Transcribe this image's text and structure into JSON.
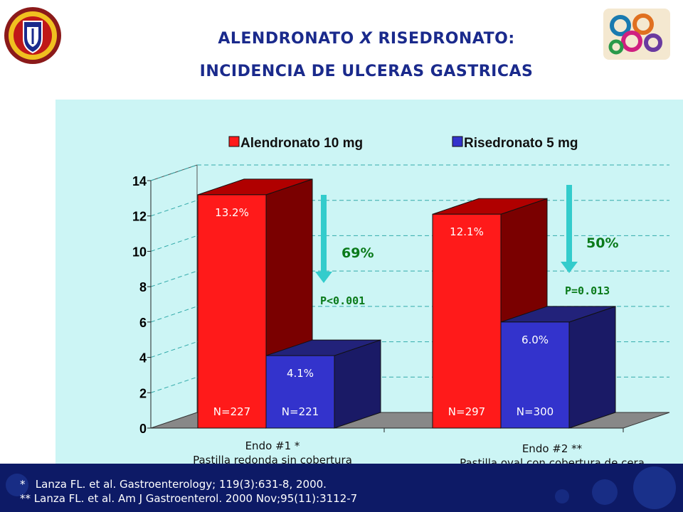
{
  "slide": {
    "title_line1_pre": "ALENDRONATO ",
    "title_line1_x": "X",
    "title_line1_post": " RISEDRONATO:",
    "title_line2": "INCIDENCIA DE ULCERAS GASTRICAS"
  },
  "colors": {
    "title": "#1a2a8c",
    "alendronato": "#ff1a1a",
    "risedronato": "#3333cc",
    "plot_bg": "#ccf5f5",
    "arrow": "#33cccc",
    "annotation_green": "#0a7a1a",
    "footer": "#0d1a66"
  },
  "chart_data": {
    "type": "bar",
    "categories": [
      "Endo #1 *|Pastilla redonda sin cobertura",
      "Endo #2 **|Pastilla oval con cobertura de cera"
    ],
    "category_labels": [
      [
        "Endo #1 *",
        "Pastilla redonda sin cobertura"
      ],
      [
        "Endo #2 **",
        "Pastilla oval con cobertura de cera"
      ]
    ],
    "series": [
      {
        "name": "Alendronato 10 mg",
        "values": [
          13.2,
          12.1
        ],
        "labels": [
          "13.2%",
          "12.1%"
        ],
        "n_labels": [
          "N=227",
          "N=297"
        ]
      },
      {
        "name": "Risedronato 5 mg",
        "values": [
          4.1,
          6.0
        ],
        "labels": [
          "4.1%",
          "6.0%"
        ],
        "n_labels": [
          "N=221",
          "N=300"
        ]
      }
    ],
    "ylim": [
      0,
      14
    ],
    "yticks": [
      "0",
      "2",
      "4",
      "6",
      "8",
      "10",
      "12",
      "14"
    ],
    "annotations": [
      {
        "reduction": "69%",
        "pvalue": "P<0.001"
      },
      {
        "reduction": "50%",
        "pvalue": "P=0.013"
      }
    ],
    "grid": true,
    "legend_position": "top"
  },
  "footer": {
    "ref1": "*   Lanza FL. et al. Gastroenterology; 119(3):631-8, 2000.",
    "ref2": "** Lanza FL. et al. Am J Gastroenterol. 2000 Nov;95(11):3112-7"
  }
}
